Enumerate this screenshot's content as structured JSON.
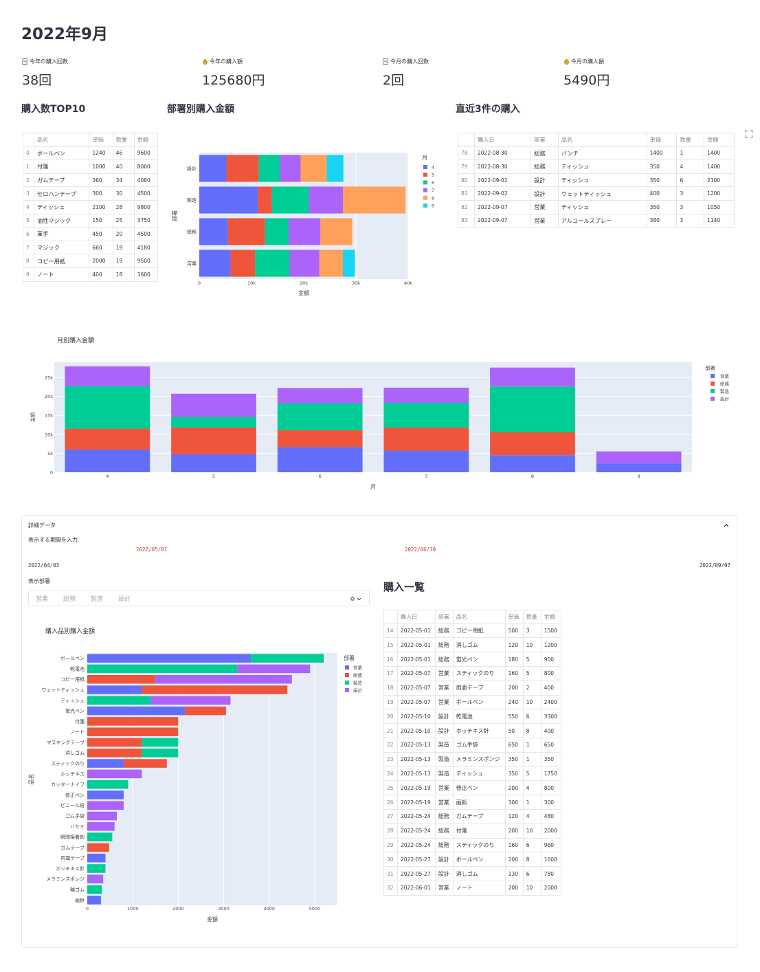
{
  "page": {
    "title": "2022年9月"
  },
  "metrics": [
    {
      "label": "今年の購入回数",
      "value": "38回",
      "icon": "memo-icon"
    },
    {
      "label": "今年の購入額",
      "value": "125680円",
      "icon": "money-bag-icon"
    },
    {
      "label": "今月の購入回数",
      "value": "2回",
      "icon": "memo-icon"
    },
    {
      "label": "今月の購入額",
      "value": "5490円",
      "icon": "money-bag-icon"
    }
  ],
  "top10": {
    "heading": "購入数TOP10",
    "columns": [
      "品名",
      "単価",
      "数量",
      "金額"
    ],
    "rows": [
      [
        "0",
        "ボールペン",
        "1240",
        "46",
        "9600"
      ],
      [
        "1",
        "付箋",
        "1000",
        "40",
        "8000"
      ],
      [
        "2",
        "ガムテープ",
        "360",
        "34",
        "4080"
      ],
      [
        "3",
        "セロハンテープ",
        "300",
        "30",
        "4500"
      ],
      [
        "4",
        "ティッシュ",
        "2100",
        "28",
        "9800"
      ],
      [
        "5",
        "油性マジック",
        "150",
        "25",
        "3750"
      ],
      [
        "6",
        "軍手",
        "450",
        "20",
        "4500"
      ],
      [
        "7",
        "マジック",
        "660",
        "19",
        "4180"
      ],
      [
        "8",
        "コピー用紙",
        "2000",
        "19",
        "9500"
      ],
      [
        "9",
        "ノート",
        "400",
        "18",
        "3600"
      ]
    ]
  },
  "recent": {
    "heading": "直近3件の購入",
    "columns": [
      "購入日",
      "部署",
      "品名",
      "単価",
      "数量",
      "金額"
    ],
    "rows": [
      [
        "78",
        "2022-08-30",
        "総務",
        "パンチ",
        "1400",
        "1",
        "1400"
      ],
      [
        "79",
        "2022-08-30",
        "総務",
        "ティッシュ",
        "350",
        "4",
        "1400"
      ],
      [
        "80",
        "2022-09-02",
        "設計",
        "ティッシュ",
        "350",
        "6",
        "2100"
      ],
      [
        "81",
        "2022-09-02",
        "設計",
        "ウェットティッシュ",
        "400",
        "3",
        "1200"
      ],
      [
        "82",
        "2022-09-07",
        "営業",
        "ティッシュ",
        "350",
        "3",
        "1050"
      ],
      [
        "83",
        "2022-09-07",
        "営業",
        "アルコールスプレー",
        "380",
        "3",
        "1140"
      ]
    ]
  },
  "colors": {
    "c1": "#636efa",
    "c2": "#ef553b",
    "c3": "#00cc96",
    "c4": "#ab63fa",
    "c5": "#ffa15a",
    "c6": "#19d3f3",
    "plotbg": "#e5ecf6"
  },
  "chart_data": [
    {
      "id": "dept",
      "type": "bar",
      "orientation": "h",
      "stacked": true,
      "title": "部署別購入金額",
      "xlabel": "金額",
      "ylabel": "部署",
      "categories": [
        "設計",
        "製造",
        "総務",
        "営業"
      ],
      "xlim": [
        0,
        40000
      ],
      "xticks": [
        "0",
        "10k",
        "20k",
        "30k",
        "40k"
      ],
      "legend_title": "月",
      "series": [
        {
          "name": "4",
          "color": "#636efa",
          "values": [
            5200,
            11200,
            5500,
            6000
          ]
        },
        {
          "name": "5",
          "color": "#ef553b",
          "values": [
            6200,
            2700,
            7100,
            4700
          ]
        },
        {
          "name": "6",
          "color": "#00cc96",
          "values": [
            4000,
            7100,
            4500,
            6600
          ]
        },
        {
          "name": "7",
          "color": "#ab63fa",
          "values": [
            4000,
            6500,
            6100,
            5700
          ]
        },
        {
          "name": "8",
          "color": "#ffa15a",
          "values": [
            5000,
            12000,
            6100,
            4500
          ]
        },
        {
          "name": "9",
          "color": "#19d3f3",
          "values": [
            3200,
            0,
            0,
            2300
          ]
        }
      ]
    },
    {
      "id": "monthly",
      "type": "bar",
      "stacked": true,
      "title": "月別購入金額",
      "xlabel": "月",
      "ylabel": "金額",
      "categories": [
        "4",
        "5",
        "6",
        "7",
        "8",
        "9"
      ],
      "ylim": [
        0,
        29000
      ],
      "yticks": [
        0,
        5000,
        10000,
        15000,
        20000,
        25000
      ],
      "ytick_labels": [
        "0",
        "5k",
        "10k",
        "15k",
        "20k",
        "25k"
      ],
      "legend_title": "部署",
      "series": [
        {
          "name": "営業",
          "color": "#636efa",
          "values": [
            6000,
            4700,
            6600,
            5700,
            4500,
            2300
          ]
        },
        {
          "name": "総務",
          "color": "#ef553b",
          "values": [
            5500,
            7100,
            4500,
            6100,
            6100,
            0
          ]
        },
        {
          "name": "製造",
          "color": "#00cc96",
          "values": [
            11200,
            2700,
            7100,
            6500,
            12000,
            0
          ]
        },
        {
          "name": "設計",
          "color": "#ab63fa",
          "values": [
            5200,
            6200,
            4000,
            4000,
            5000,
            3200
          ]
        }
      ]
    },
    {
      "id": "items",
      "type": "bar",
      "orientation": "h",
      "stacked": true,
      "title": "購入品別購入金額",
      "xlabel": "金額",
      "ylabel": "品名",
      "xlim": [
        0,
        5500
      ],
      "xticks": [
        0,
        1000,
        2000,
        3000,
        4000,
        5000
      ],
      "legend_title": "部署",
      "categories": [
        "ボールペン",
        "乾電池",
        "コピー用紙",
        "ウェットティッシュ",
        "ティッシュ",
        "蛍光ペン",
        "付箋",
        "ノート",
        "マスキングテープ",
        "消しゴム",
        "スティックのり",
        "ホッチキス",
        "カッターナイフ",
        "修正ペン",
        "ビニール紐",
        "ゴム手袋",
        "ハサミ",
        "瞬間接着剤",
        "ガムテープ",
        "両面テープ",
        "ホッチキス針",
        "メラミンスポンジ",
        "輪ゴム",
        "画鋲"
      ],
      "series": [
        {
          "name": "営業",
          "color": "#636efa",
          "values": [
            3600,
            0,
            0,
            1200,
            0,
            2150,
            0,
            0,
            0,
            0,
            800,
            0,
            0,
            800,
            0,
            0,
            0,
            0,
            0,
            400,
            0,
            0,
            0,
            300
          ]
        },
        {
          "name": "総務",
          "color": "#ef553b",
          "values": [
            0,
            0,
            1500,
            3200,
            0,
            900,
            2000,
            2000,
            1200,
            1200,
            950,
            0,
            0,
            0,
            0,
            0,
            0,
            0,
            480,
            0,
            0,
            0,
            0,
            0
          ]
        },
        {
          "name": "製造",
          "color": "#00cc96",
          "values": [
            1600,
            3300,
            0,
            0,
            1400,
            0,
            0,
            0,
            800,
            800,
            0,
            0,
            900,
            0,
            0,
            0,
            0,
            550,
            0,
            0,
            400,
            0,
            320,
            0
          ]
        },
        {
          "name": "設計",
          "color": "#ab63fa",
          "values": [
            0,
            1600,
            3000,
            0,
            1750,
            0,
            0,
            0,
            0,
            0,
            0,
            1200,
            0,
            0,
            800,
            650,
            600,
            0,
            0,
            0,
            0,
            350,
            0,
            0
          ]
        }
      ]
    }
  ],
  "details": {
    "expander_label": "詳細データ",
    "range_label": "表示する期間を入力",
    "range_start_selected": "2022/05/01",
    "range_end_selected": "2022/06/30",
    "range_min": "2022/04/03",
    "range_max": "2022/09/07",
    "dept_label": "表示部署",
    "dept_options": [
      "営業",
      "総務",
      "製造",
      "設計"
    ]
  },
  "purchase_list": {
    "heading": "購入一覧",
    "columns": [
      "購入日",
      "部署",
      "品名",
      "単価",
      "数量",
      "金額"
    ],
    "rows": [
      [
        "14",
        "2022-05-01",
        "総務",
        "コピー用紙",
        "500",
        "3",
        "1500"
      ],
      [
        "15",
        "2022-05-01",
        "総務",
        "消しゴム",
        "120",
        "10",
        "1200"
      ],
      [
        "16",
        "2022-05-01",
        "総務",
        "蛍光ペン",
        "180",
        "5",
        "900"
      ],
      [
        "17",
        "2022-05-07",
        "営業",
        "スティックのり",
        "160",
        "5",
        "800"
      ],
      [
        "18",
        "2022-05-07",
        "営業",
        "両面テープ",
        "200",
        "2",
        "400"
      ],
      [
        "19",
        "2022-05-07",
        "営業",
        "ボールペン",
        "240",
        "10",
        "2400"
      ],
      [
        "20",
        "2022-05-10",
        "設計",
        "乾電池",
        "550",
        "6",
        "3300"
      ],
      [
        "21",
        "2022-05-10",
        "設計",
        "ホッチキス針",
        "50",
        "8",
        "400"
      ],
      [
        "22",
        "2022-05-13",
        "製造",
        "ゴム手袋",
        "650",
        "1",
        "650"
      ],
      [
        "23",
        "2022-05-13",
        "製造",
        "メラミンスポンジ",
        "350",
        "1",
        "350"
      ],
      [
        "24",
        "2022-05-13",
        "製造",
        "ティッシュ",
        "350",
        "5",
        "1750"
      ],
      [
        "25",
        "2022-05-19",
        "営業",
        "修正ペン",
        "200",
        "4",
        "800"
      ],
      [
        "26",
        "2022-05-19",
        "営業",
        "画鋲",
        "300",
        "1",
        "300"
      ],
      [
        "27",
        "2022-05-24",
        "総務",
        "ガムテープ",
        "120",
        "4",
        "480"
      ],
      [
        "28",
        "2022-05-24",
        "総務",
        "付箋",
        "200",
        "10",
        "2000"
      ],
      [
        "29",
        "2022-05-24",
        "総務",
        "スティックのり",
        "160",
        "6",
        "960"
      ],
      [
        "30",
        "2022-05-27",
        "設計",
        "ボールペン",
        "200",
        "8",
        "1600"
      ],
      [
        "31",
        "2022-05-27",
        "設計",
        "消しゴム",
        "130",
        "6",
        "780"
      ],
      [
        "32",
        "2022-06-01",
        "営業",
        "ノート",
        "200",
        "10",
        "2000"
      ]
    ]
  }
}
